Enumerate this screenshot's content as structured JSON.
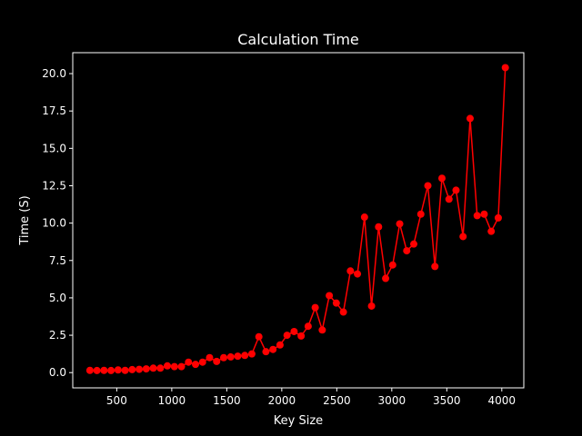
{
  "chart_data": {
    "type": "line",
    "title": "Calculation Time",
    "xlabel": "Key Size",
    "ylabel": "Time (S)",
    "xlim": [
      100,
      4200
    ],
    "ylim": [
      -1.02,
      21.4
    ],
    "grid": false,
    "background": "#000000",
    "foreground": "#ffffff",
    "xticks": [
      500,
      1000,
      1500,
      2000,
      2500,
      3000,
      3500,
      4000
    ],
    "xtick_labels": [
      "500",
      "1000",
      "1500",
      "2000",
      "2500",
      "3000",
      "3500",
      "4000"
    ],
    "yticks": [
      0,
      2.5,
      5,
      7.5,
      10,
      12.5,
      15,
      17.5,
      20
    ],
    "ytick_labels": [
      "0.0",
      "2.5",
      "5.0",
      "7.5",
      "10.0",
      "12.5",
      "15.0",
      "17.5",
      "20.0"
    ],
    "series": [
      {
        "color": "#ff0000",
        "marker": "circle",
        "x": [
          256,
          320,
          384,
          448,
          512,
          576,
          640,
          704,
          768,
          832,
          896,
          960,
          1024,
          1088,
          1152,
          1216,
          1280,
          1344,
          1408,
          1472,
          1536,
          1600,
          1664,
          1728,
          1792,
          1856,
          1920,
          1984,
          2048,
          2112,
          2176,
          2240,
          2304,
          2368,
          2432,
          2496,
          2560,
          2624,
          2688,
          2752,
          2816,
          2880,
          2944,
          3008,
          3072,
          3136,
          3200,
          3264,
          3328,
          3392,
          3456,
          3520,
          3584,
          3648,
          3712,
          3776,
          3840,
          3904,
          3968,
          4032
        ],
        "y": [
          0.15,
          0.14,
          0.15,
          0.14,
          0.18,
          0.15,
          0.2,
          0.22,
          0.25,
          0.3,
          0.3,
          0.45,
          0.4,
          0.4,
          0.7,
          0.55,
          0.7,
          1.0,
          0.75,
          1.0,
          1.05,
          1.1,
          1.15,
          1.25,
          2.4,
          1.4,
          1.55,
          1.85,
          2.5,
          2.75,
          2.45,
          3.1,
          4.35,
          2.85,
          5.15,
          4.65,
          4.05,
          6.8,
          6.6,
          10.4,
          4.45,
          9.75,
          6.3,
          7.2,
          9.95,
          8.15,
          8.6,
          10.6,
          12.5,
          7.1,
          13.0,
          11.6,
          12.2,
          9.1,
          17.0,
          10.5,
          10.6,
          9.45,
          10.35,
          20.4
        ]
      }
    ]
  }
}
